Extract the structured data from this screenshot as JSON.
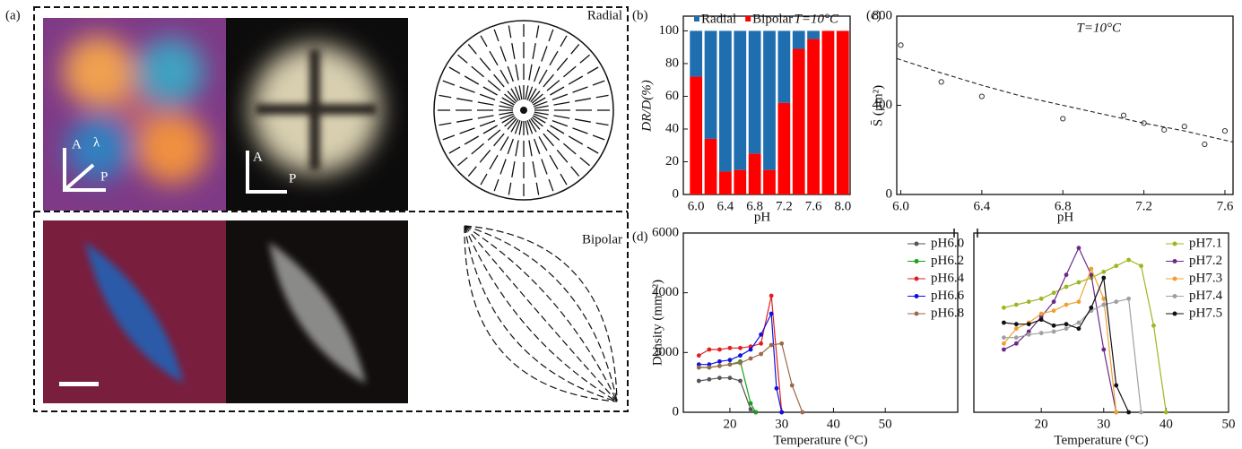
{
  "panel_a": {
    "label": "(a)",
    "top_label": "Radial",
    "bottom_label": "Bipolar",
    "polarizers_1": [
      "A",
      "λ",
      "P"
    ],
    "polarizers_2": [
      "A",
      "P"
    ]
  },
  "chart_data": [
    {
      "type": "bar",
      "panel_label": "(b)",
      "title": "T=10°C",
      "xlabel": "pH",
      "ylabel": "DR/D(%)",
      "categories": [
        "6.0",
        null,
        "6.4",
        null,
        "6.8",
        null,
        "7.2",
        null,
        "7.6",
        null,
        "8.0"
      ],
      "series": [
        {
          "name": "Radial",
          "color": "#1f6fb0",
          "values": [
            28,
            66,
            86,
            85,
            75,
            85,
            44,
            11,
            5,
            0,
            0
          ]
        },
        {
          "name": "Bipolar",
          "color": "#ff0000",
          "values": [
            72,
            34,
            14,
            15,
            25,
            15,
            56,
            89,
            95,
            100,
            100
          ]
        }
      ],
      "ylim": [
        0,
        109
      ],
      "yticks": [
        0,
        20,
        40,
        60,
        80,
        100
      ],
      "stacked": true
    },
    {
      "type": "scatter",
      "panel_label": "(c)",
      "title": "T=10°C",
      "xlabel": "pH",
      "ylabel": "S̄ (μm²)",
      "xlim": [
        5.98,
        7.64
      ],
      "ylim": [
        0,
        800
      ],
      "xticks": [
        {
          "value": 6,
          "label": "6.0"
        },
        {
          "value": 6.4,
          "label": "6.4"
        },
        {
          "value": 6.8,
          "label": "6.8"
        },
        {
          "value": 7.2,
          "label": "7.2"
        },
        {
          "value": 7.6,
          "label": "7.6"
        }
      ],
      "yticks": [
        0,
        400,
        800
      ],
      "series": [
        {
          "mode": "markers",
          "color": "#333333",
          "x": [
            6.0,
            6.2,
            6.4,
            6.8,
            7.1,
            7.2,
            7.3,
            7.4,
            7.5,
            7.6
          ],
          "values": [
            670,
            505,
            440,
            340,
            355,
            320,
            290,
            305,
            225,
            285
          ]
        },
        {
          "mode": "dashed",
          "color": "#222222",
          "x": [
            5.98,
            6.2,
            6.4,
            6.6,
            6.8,
            7.0,
            7.2,
            7.4,
            7.64
          ],
          "values": [
            610,
            545,
            490,
            440,
            400,
            360,
            320,
            285,
            235
          ]
        }
      ]
    },
    {
      "type": "line",
      "panel_label": "(d)",
      "xlabel": "Temperature (°C)",
      "ylabel": "Density (mm⁻²)",
      "xlim": [
        11,
        64
      ],
      "ylim": [
        0,
        6000
      ],
      "xticks": [
        20,
        30,
        40,
        50
      ],
      "yticks": [
        0,
        2000,
        4000,
        6000
      ],
      "series": [
        {
          "name": "pH6.0",
          "color": "#555555",
          "x": [
            14,
            16,
            18,
            20,
            22,
            24,
            25
          ],
          "values": [
            1050,
            1100,
            1150,
            1150,
            1050,
            100,
            0
          ]
        },
        {
          "name": "pH6.2",
          "color": "#1aa01a",
          "x": [
            14,
            16,
            18,
            20,
            22,
            24,
            25
          ],
          "values": [
            1500,
            1500,
            1550,
            1600,
            1700,
            300,
            0
          ]
        },
        {
          "name": "pH6.4",
          "color": "#e02020",
          "x": [
            14,
            16,
            18,
            20,
            22,
            24,
            26,
            28,
            30
          ],
          "values": [
            1900,
            2100,
            2100,
            2150,
            2150,
            2200,
            2300,
            3900,
            0
          ]
        },
        {
          "name": "pH6.6",
          "color": "#1010e0",
          "x": [
            14,
            16,
            18,
            20,
            22,
            24,
            26,
            28,
            29,
            30
          ],
          "values": [
            1600,
            1600,
            1700,
            1750,
            1900,
            2100,
            2600,
            3300,
            800,
            0
          ]
        },
        {
          "name": "pH6.8",
          "color": "#9a6a4a",
          "x": [
            14,
            16,
            18,
            20,
            22,
            24,
            26,
            28,
            30,
            32,
            34
          ],
          "values": [
            1500,
            1500,
            1550,
            1600,
            1650,
            1800,
            1950,
            2250,
            2300,
            900,
            0
          ]
        }
      ]
    },
    {
      "type": "line",
      "xlabel": "Temperature (°C)",
      "xlim": [
        9.2,
        50
      ],
      "ylim": [
        0,
        6000
      ],
      "xticks": [
        20,
        30,
        40,
        50
      ],
      "series": [
        {
          "name": "pH7.1",
          "color": "#9ab821",
          "x": [
            14,
            16,
            18,
            20,
            22,
            24,
            26,
            28,
            30,
            32,
            34,
            36,
            38,
            40
          ],
          "values": [
            3500,
            3600,
            3700,
            3800,
            4000,
            4200,
            4350,
            4500,
            4700,
            4900,
            5100,
            4900,
            2900,
            0
          ]
        },
        {
          "name": "pH7.2",
          "color": "#6a2a8a",
          "x": [
            14,
            16,
            18,
            20,
            22,
            24,
            26,
            28,
            30,
            32
          ],
          "values": [
            2100,
            2300,
            2700,
            3200,
            3700,
            4600,
            5500,
            4600,
            2100,
            0
          ]
        },
        {
          "name": "pH7.3",
          "color": "#f0a030",
          "x": [
            14,
            16,
            18,
            20,
            22,
            24,
            26,
            28,
            30,
            32
          ],
          "values": [
            2300,
            2800,
            3000,
            3300,
            3400,
            3600,
            3700,
            4800,
            3800,
            0
          ]
        },
        {
          "name": "pH7.4",
          "color": "#a0a0a0",
          "x": [
            14,
            16,
            18,
            20,
            22,
            24,
            26,
            28,
            30,
            32,
            34,
            36
          ],
          "values": [
            2500,
            2500,
            2600,
            2650,
            2700,
            2800,
            3000,
            3400,
            3600,
            3700,
            3800,
            0
          ]
        },
        {
          "name": "pH7.5",
          "color": "#111111",
          "x": [
            14,
            16,
            18,
            20,
            22,
            24,
            26,
            28,
            30,
            32,
            34
          ],
          "values": [
            3000,
            2950,
            2950,
            3100,
            2900,
            2950,
            2800,
            3500,
            4500,
            900,
            0
          ]
        }
      ]
    }
  ]
}
